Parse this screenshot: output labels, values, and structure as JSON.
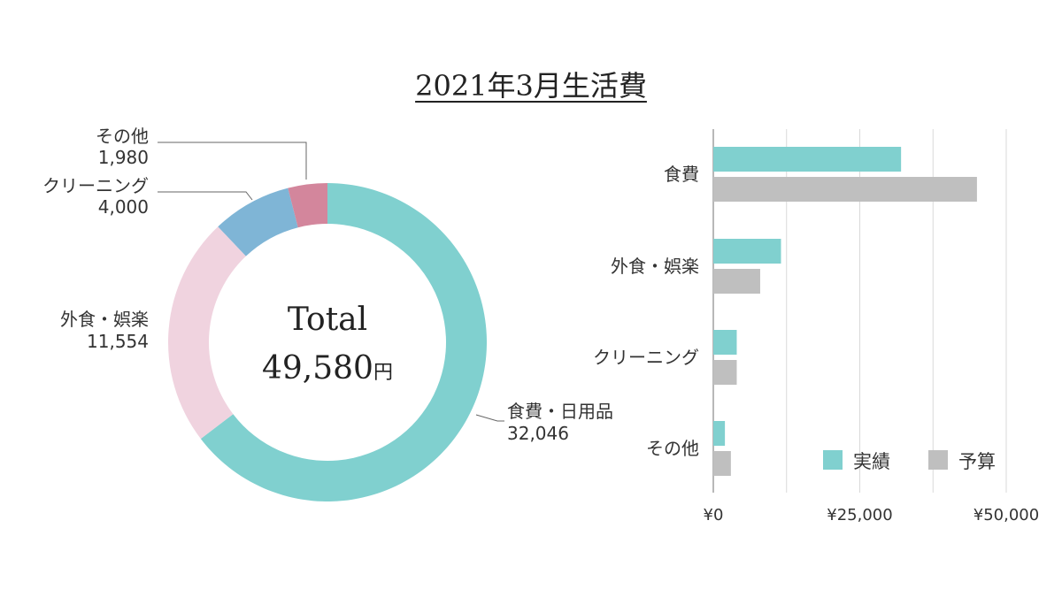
{
  "title": "2021年3月生活費",
  "center": {
    "label": "Total",
    "amount": "49,580",
    "unit": "円"
  },
  "chart_data": [
    {
      "type": "pie",
      "variant": "donut",
      "categories": [
        "食費・日用品",
        "外食・娯楽",
        "クリーニング",
        "その他"
      ],
      "values": [
        32046,
        11554,
        4000,
        1980
      ],
      "value_labels": [
        "32,046",
        "11,554",
        "4,000",
        "1,980"
      ],
      "colors": [
        "#80d0cf",
        "#f0d3df",
        "#7fb5d6",
        "#d3869c"
      ]
    },
    {
      "type": "bar",
      "orientation": "horizontal",
      "categories": [
        "食費",
        "外食・娯楽",
        "クリーニング",
        "その他"
      ],
      "series": [
        {
          "name": "実績",
          "values": [
            32046,
            11554,
            4000,
            1980
          ],
          "color": "#80d0cf"
        },
        {
          "name": "予算",
          "values": [
            45000,
            8000,
            4000,
            3000
          ],
          "color": "#bfbfbf"
        }
      ],
      "xlim": [
        0,
        50000
      ],
      "tick_values": [
        0,
        25000,
        50000
      ],
      "tick_labels": [
        "¥0",
        "¥25,000",
        "¥50,000"
      ],
      "grid": true,
      "legend_position": "bottom-right"
    }
  ]
}
